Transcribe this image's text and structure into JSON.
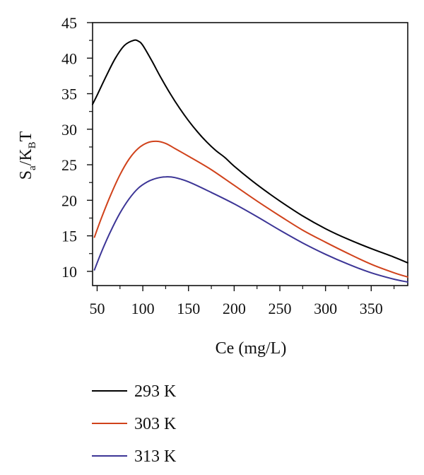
{
  "chart_data": {
    "type": "line",
    "title": "",
    "xlabel": "Ce (mg/L)",
    "ylabel": {
      "main": "S",
      "sub1": "a",
      "mid": "/K",
      "sub2": "B",
      "tail": "T"
    },
    "xlim": [
      45,
      390
    ],
    "ylim": [
      8,
      45
    ],
    "xticks": [
      50,
      100,
      150,
      200,
      250,
      300,
      350
    ],
    "yticks": [
      10,
      15,
      20,
      25,
      30,
      35,
      40,
      45
    ],
    "grid": false,
    "legend_position": "bottom",
    "series": [
      {
        "name": "293 K",
        "color": "#000000",
        "x": [
          45,
          50,
          60,
          70,
          80,
          90,
          95,
          100,
          110,
          120,
          130,
          140,
          150,
          160,
          170,
          180,
          190,
          200,
          225,
          250,
          275,
          300,
          325,
          350,
          375,
          390
        ],
        "y": [
          33.5,
          34.8,
          37.5,
          40.0,
          41.8,
          42.5,
          42.4,
          41.8,
          39.6,
          37.2,
          35.0,
          33.0,
          31.2,
          29.6,
          28.2,
          27.0,
          26.0,
          24.8,
          22.2,
          19.9,
          17.8,
          16.0,
          14.5,
          13.2,
          12.0,
          11.2
        ]
      },
      {
        "name": "303 K",
        "color": "#d0421b",
        "x": [
          47,
          55,
          65,
          75,
          85,
          95,
          105,
          115,
          125,
          135,
          150,
          175,
          200,
          225,
          250,
          275,
          300,
          325,
          350,
          375,
          390
        ],
        "y": [
          14.8,
          17.6,
          20.8,
          23.6,
          25.8,
          27.3,
          28.1,
          28.3,
          28.0,
          27.3,
          26.2,
          24.3,
          22.1,
          19.9,
          17.8,
          15.8,
          14.1,
          12.5,
          11.0,
          9.8,
          9.2
        ]
      },
      {
        "name": "313 K",
        "color": "#3c3596",
        "x": [
          47,
          55,
          65,
          75,
          85,
          95,
          105,
          115,
          125,
          135,
          150,
          175,
          200,
          225,
          250,
          275,
          300,
          325,
          350,
          375,
          390
        ],
        "y": [
          10.2,
          12.8,
          15.7,
          18.2,
          20.2,
          21.7,
          22.6,
          23.1,
          23.3,
          23.2,
          22.6,
          21.1,
          19.5,
          17.7,
          15.8,
          14.0,
          12.4,
          11.0,
          9.8,
          8.9,
          8.5
        ]
      }
    ]
  }
}
